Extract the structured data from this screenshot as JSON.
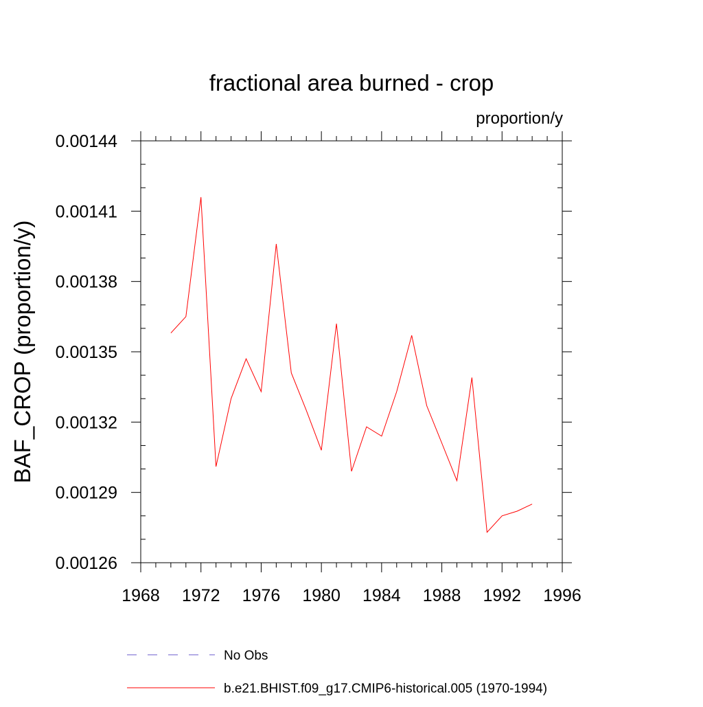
{
  "chart_data": {
    "type": "line",
    "title": "fractional area burned - crop",
    "units_label": "proportion/y",
    "xlabel": "",
    "ylabel": "BAF_CROP  (proportion/y)",
    "xlim": [
      1968,
      1996
    ],
    "ylim": [
      0.00126,
      0.00144
    ],
    "x_ticks": [
      1968,
      1972,
      1976,
      1980,
      1984,
      1988,
      1992,
      1996
    ],
    "x_tick_labels": [
      "1968",
      "1972",
      "1976",
      "1980",
      "1984",
      "1988",
      "1992",
      "1996"
    ],
    "y_ticks": [
      0.00126,
      0.00129,
      0.00132,
      0.00135,
      0.00138,
      0.00141,
      0.00144
    ],
    "y_tick_labels": [
      "0.00126",
      "0.00129",
      "0.00132",
      "0.00135",
      "0.00138",
      "0.00141",
      "0.00144"
    ],
    "grid": false,
    "legend_position": "bottom",
    "series": [
      {
        "name": "b.e21.BHIST.f09_g17.CMIP6-historical.005 (1970-1994)",
        "color": "#ff0000",
        "style": "solid",
        "x": [
          1970,
          1971,
          1972,
          1973,
          1974,
          1975,
          1976,
          1977,
          1978,
          1979,
          1980,
          1981,
          1982,
          1983,
          1984,
          1985,
          1986,
          1987,
          1988,
          1989,
          1990,
          1991,
          1992,
          1993,
          1994
        ],
        "y": [
          0.001358,
          0.001365,
          0.001416,
          0.001301,
          0.00133,
          0.001347,
          0.001333,
          0.001396,
          0.001341,
          0.001325,
          0.001308,
          0.001362,
          0.001299,
          0.001318,
          0.001314,
          0.001333,
          0.001357,
          0.001327,
          0.001311,
          0.001295,
          0.001339,
          0.001273,
          0.00128,
          0.001282,
          0.001285
        ]
      }
    ],
    "legend": [
      {
        "label": "No Obs",
        "color": "#6a5acd",
        "style": "dashed"
      },
      {
        "label": "b.e21.BHIST.f09_g17.CMIP6-historical.005 (1970-1994)",
        "color": "#ff0000",
        "style": "solid"
      }
    ]
  }
}
